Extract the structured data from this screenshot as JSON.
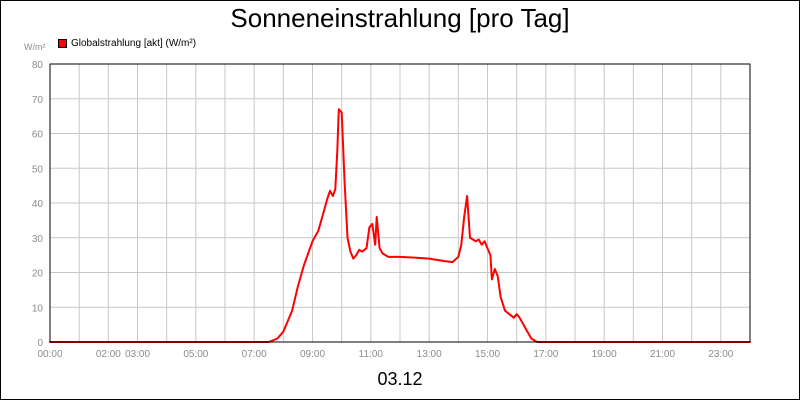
{
  "chart_data": {
    "type": "line",
    "title": "Sonneneinstrahlung [pro Tag]",
    "ylabel": "W/m²",
    "xlabel": "03.12",
    "ylim": [
      0,
      80
    ],
    "xlim": [
      0,
      24
    ],
    "grid": true,
    "legend_position": "top-left",
    "y_ticks": [
      0,
      10,
      20,
      30,
      40,
      50,
      60,
      70,
      80
    ],
    "y_tick_labels": [
      "0",
      "10",
      "20",
      "30",
      "40",
      "50",
      "60",
      "70",
      "80"
    ],
    "x_ticks": [
      0,
      2,
      3,
      5,
      7,
      9,
      11,
      13,
      15,
      17,
      19,
      21,
      23
    ],
    "x_tick_labels": [
      "00:00",
      "02:00",
      "03:00",
      "05:00",
      "07:00",
      "09:00",
      "11:00",
      "13:00",
      "15:00",
      "17:00",
      "19:00",
      "21:00",
      "23:00"
    ],
    "series": [
      {
        "name": "Globalstrahlung [akt] (W/m²)",
        "color": "#ff0000",
        "x": [
          0,
          7.5,
          7.8,
          8.0,
          8.1,
          8.3,
          8.5,
          8.7,
          9.0,
          9.2,
          9.4,
          9.5,
          9.6,
          9.7,
          9.78,
          9.85,
          9.9,
          10.0,
          10.1,
          10.2,
          10.3,
          10.4,
          10.5,
          10.6,
          10.7,
          10.85,
          10.95,
          11.05,
          11.15,
          11.2,
          11.3,
          11.4,
          11.5,
          11.6,
          12.0,
          12.5,
          13.0,
          13.5,
          13.8,
          14.0,
          14.1,
          14.2,
          14.3,
          14.4,
          14.5,
          14.6,
          14.7,
          14.8,
          14.9,
          15.0,
          15.1,
          15.15,
          15.25,
          15.35,
          15.45,
          15.6,
          15.75,
          15.9,
          16.0,
          16.1,
          16.3,
          16.5,
          16.7,
          17.0,
          24.0
        ],
        "values": [
          0,
          0,
          1,
          3,
          5,
          9,
          16,
          22,
          29,
          32,
          38,
          41,
          43.5,
          42,
          44,
          55,
          67,
          66,
          46,
          30,
          26,
          24,
          25,
          26.5,
          26,
          27,
          33,
          34,
          28,
          36,
          27,
          25.5,
          25,
          24.5,
          24.5,
          24.3,
          24,
          23.3,
          23,
          24.5,
          28,
          36,
          42,
          30,
          29.5,
          29,
          29.5,
          28,
          29,
          27,
          25,
          18,
          21,
          19,
          13,
          9,
          8,
          7,
          8,
          7,
          4,
          1,
          0,
          0,
          0
        ]
      }
    ]
  },
  "colors": {
    "line": "#ff0000",
    "grid": "#c8c8c8",
    "axis_text": "#8c8c8c",
    "plot_border": "#000000"
  }
}
